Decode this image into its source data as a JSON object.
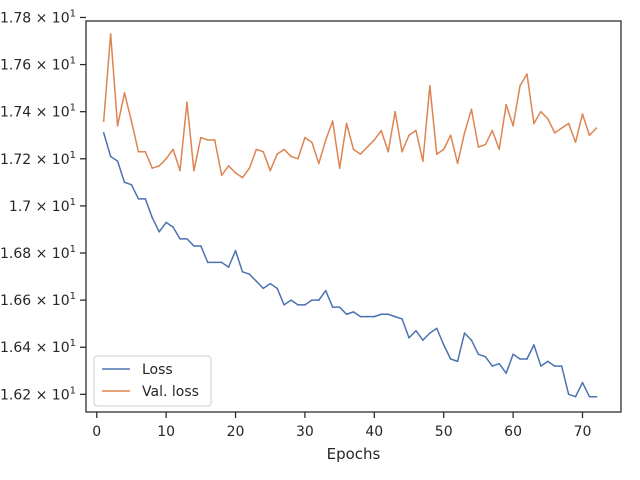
{
  "chart_data": {
    "type": "line",
    "title": "",
    "xlabel": "Epochs",
    "ylabel": "",
    "xlim": [
      -1.55,
      75.55
    ],
    "ylim": [
      16.125,
      17.785
    ],
    "grid": false,
    "legend_position": "lower-left",
    "x_ticks": [
      {
        "value": 0,
        "label": "0"
      },
      {
        "value": 10,
        "label": "10"
      },
      {
        "value": 20,
        "label": "20"
      },
      {
        "value": 30,
        "label": "30"
      },
      {
        "value": 40,
        "label": "40"
      },
      {
        "value": 50,
        "label": "50"
      },
      {
        "value": 60,
        "label": "60"
      },
      {
        "value": 70,
        "label": "70"
      }
    ],
    "y_ticks": [
      {
        "value": 16.2,
        "label": "1.62 × 10",
        "exp": "1"
      },
      {
        "value": 16.4,
        "label": "1.64 × 10",
        "exp": "1"
      },
      {
        "value": 16.6,
        "label": "1.66 × 10",
        "exp": "1"
      },
      {
        "value": 16.8,
        "label": "1.68 × 10",
        "exp": "1"
      },
      {
        "value": 17.0,
        "label": "1.7 × 10",
        "exp": "1"
      },
      {
        "value": 17.2,
        "label": "1.72 × 10",
        "exp": "1"
      },
      {
        "value": 17.4,
        "label": "1.74 × 10",
        "exp": "1"
      },
      {
        "value": 17.6,
        "label": "1.76 × 10",
        "exp": "1"
      },
      {
        "value": 17.8,
        "label": "1.78 × 10",
        "exp": "1"
      }
    ],
    "x": [
      1,
      2,
      3,
      4,
      5,
      6,
      7,
      8,
      9,
      10,
      11,
      12,
      13,
      14,
      15,
      16,
      17,
      18,
      19,
      20,
      21,
      22,
      23,
      24,
      25,
      26,
      27,
      28,
      29,
      30,
      31,
      32,
      33,
      34,
      35,
      36,
      37,
      38,
      39,
      40,
      41,
      42,
      43,
      44,
      45,
      46,
      47,
      48,
      49,
      50,
      51,
      52,
      53,
      54,
      55,
      56,
      57,
      58,
      59,
      60,
      61,
      62,
      63,
      64,
      65,
      66,
      67,
      68,
      69,
      70,
      71,
      72
    ],
    "series": [
      {
        "name": "Loss",
        "color": "#4c72b0",
        "values": [
          17.31,
          17.21,
          17.19,
          17.1,
          17.09,
          17.03,
          17.03,
          16.95,
          16.89,
          16.93,
          16.91,
          16.86,
          16.86,
          16.83,
          16.83,
          16.76,
          16.76,
          16.76,
          16.74,
          16.81,
          16.72,
          16.71,
          16.68,
          16.65,
          16.67,
          16.65,
          16.58,
          16.6,
          16.58,
          16.58,
          16.6,
          16.6,
          16.64,
          16.57,
          16.57,
          16.54,
          16.55,
          16.53,
          16.53,
          16.53,
          16.54,
          16.54,
          16.53,
          16.52,
          16.44,
          16.47,
          16.43,
          16.46,
          16.48,
          16.41,
          16.35,
          16.34,
          16.46,
          16.43,
          16.37,
          16.36,
          16.32,
          16.33,
          16.29,
          16.37,
          16.35,
          16.35,
          16.41,
          16.32,
          16.34,
          16.32,
          16.32,
          16.2,
          16.19,
          16.25,
          16.19,
          16.19
        ]
      },
      {
        "name": "Val. loss",
        "color": "#dd8452",
        "values": [
          17.36,
          17.73,
          17.34,
          17.48,
          17.36,
          17.23,
          17.23,
          17.16,
          17.17,
          17.2,
          17.24,
          17.15,
          17.44,
          17.15,
          17.29,
          17.28,
          17.28,
          17.13,
          17.17,
          17.14,
          17.12,
          17.16,
          17.24,
          17.23,
          17.15,
          17.22,
          17.24,
          17.21,
          17.2,
          17.29,
          17.27,
          17.18,
          17.28,
          17.36,
          17.16,
          17.35,
          17.24,
          17.22,
          17.25,
          17.28,
          17.32,
          17.23,
          17.4,
          17.23,
          17.3,
          17.32,
          17.19,
          17.51,
          17.22,
          17.24,
          17.3,
          17.18,
          17.31,
          17.41,
          17.25,
          17.26,
          17.32,
          17.24,
          17.43,
          17.34,
          17.51,
          17.56,
          17.35,
          17.4,
          17.37,
          17.31,
          17.33,
          17.35,
          17.27,
          17.39,
          17.3,
          17.33
        ]
      }
    ]
  }
}
